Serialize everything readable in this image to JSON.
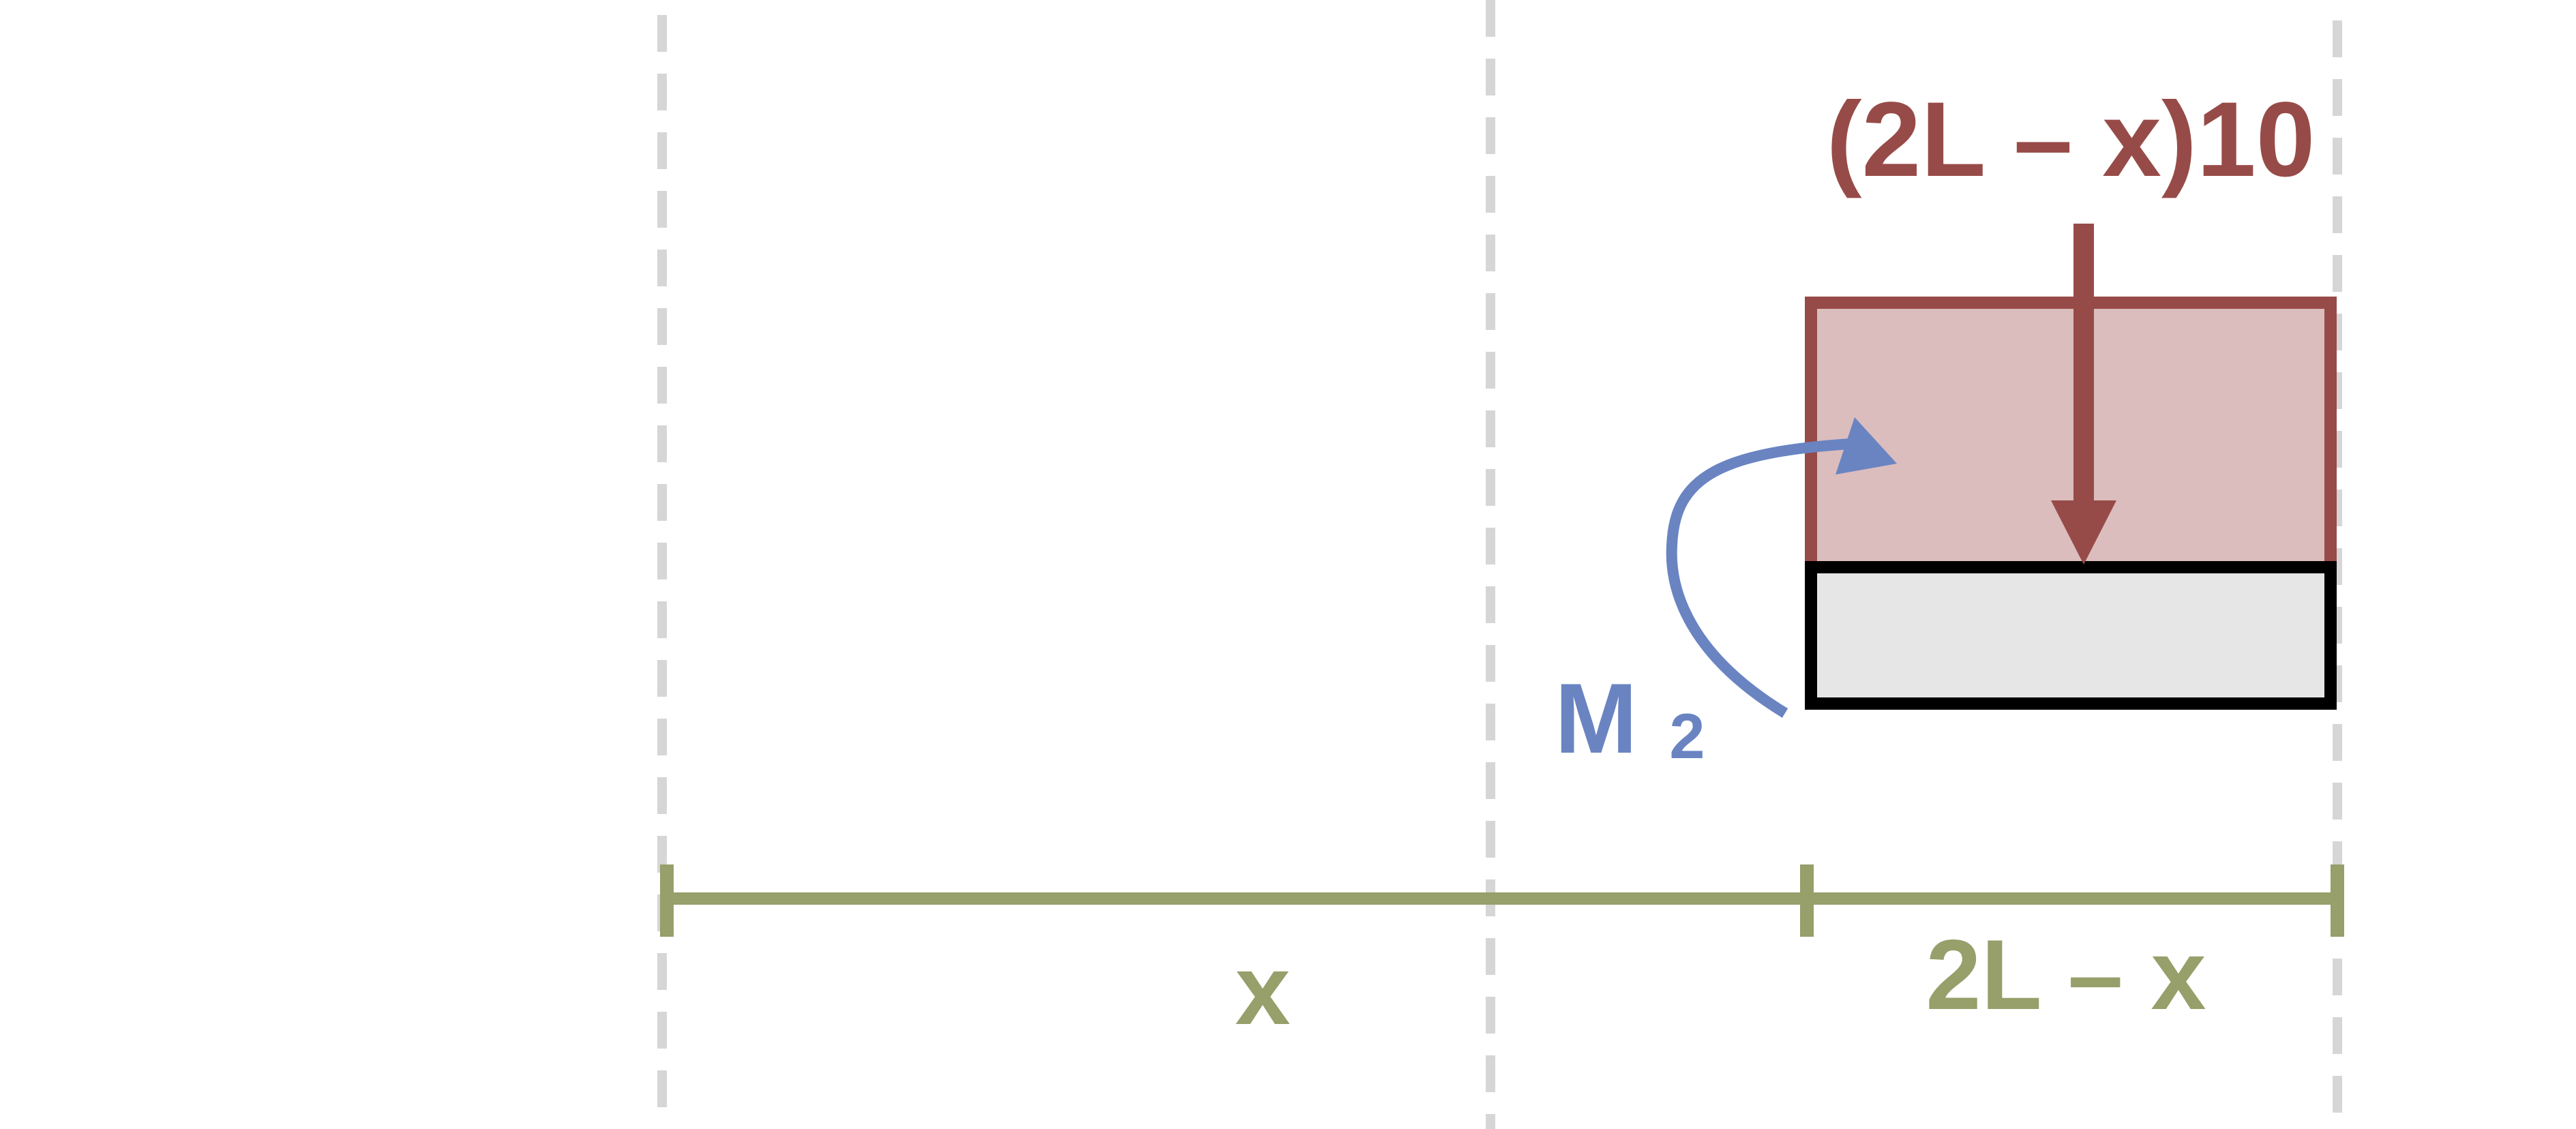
{
  "labels": {
    "load": "(2L – x)10",
    "moment_main": "M",
    "moment_sub": "2",
    "dim_left": "x",
    "dim_right": "2L – x"
  },
  "colors": {
    "load": "#974B48",
    "load_fill": "#DBBDBD",
    "moment": "#6A84C2",
    "dimension": "#979F6A",
    "guide": "#D6D6D6",
    "beam_fill": "#E6E6E6",
    "beam_stroke": "#000000"
  }
}
